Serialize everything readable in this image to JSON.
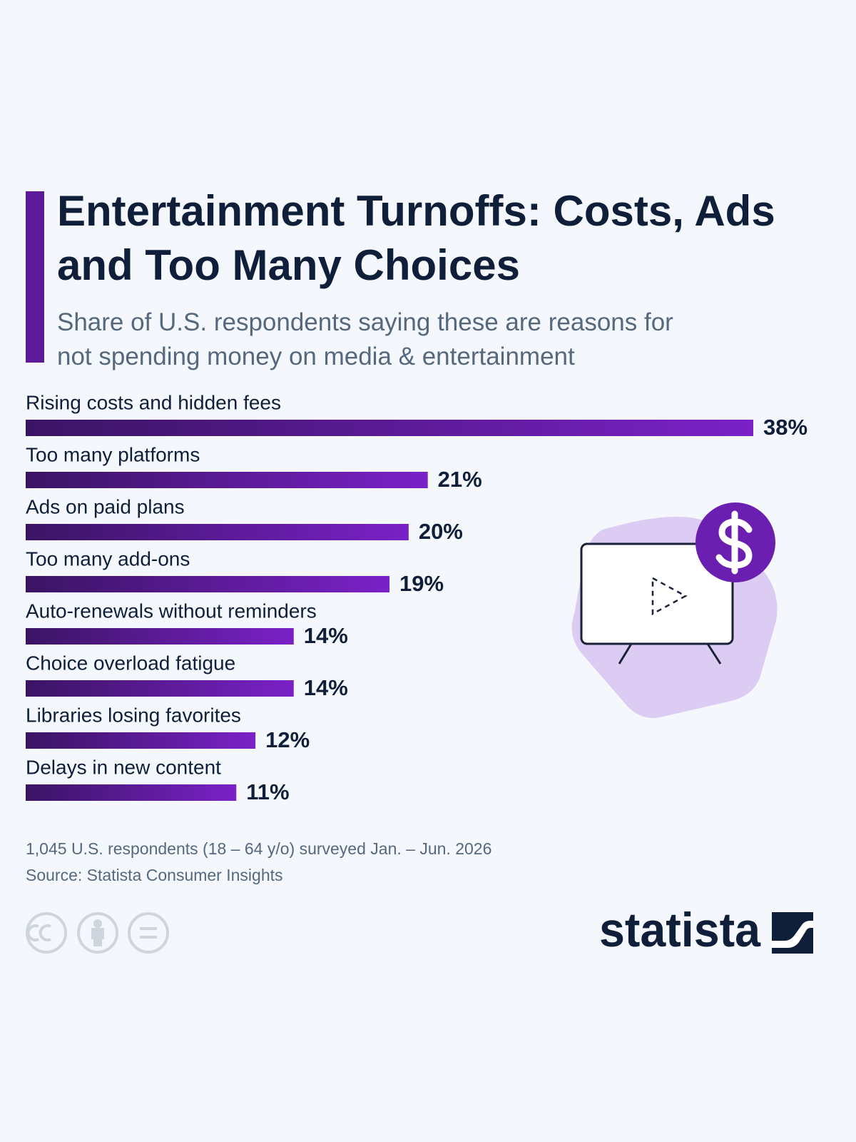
{
  "chart_data": {
    "type": "bar",
    "orientation": "horizontal",
    "title": "Entertainment Turnoffs: Costs, Ads and Too Many Choices",
    "subtitle": "Share of U.S. respondents saying these are reasons for not spending money on media & entertainment",
    "categories": [
      "Rising costs and hidden fees",
      "Too many platforms",
      "Ads on paid plans",
      "Too many add-ons",
      "Auto-renewals without reminders",
      "Choice overload fatigue",
      "Libraries losing favorites",
      "Delays in new content"
    ],
    "values": [
      38,
      21,
      20,
      19,
      14,
      14,
      12,
      11
    ],
    "value_labels": [
      "38%",
      "21%",
      "20%",
      "19%",
      "14%",
      "14%",
      "12%",
      "11%"
    ],
    "gradient": [
      "#3a1463",
      "#7a21c7"
    ],
    "note": "1,045 U.S. respondents (18 – 64 y/o) surveyed Jan. – Jun. 2026",
    "source": "Source: Statista Consumer Insights",
    "brand": "statista"
  }
}
